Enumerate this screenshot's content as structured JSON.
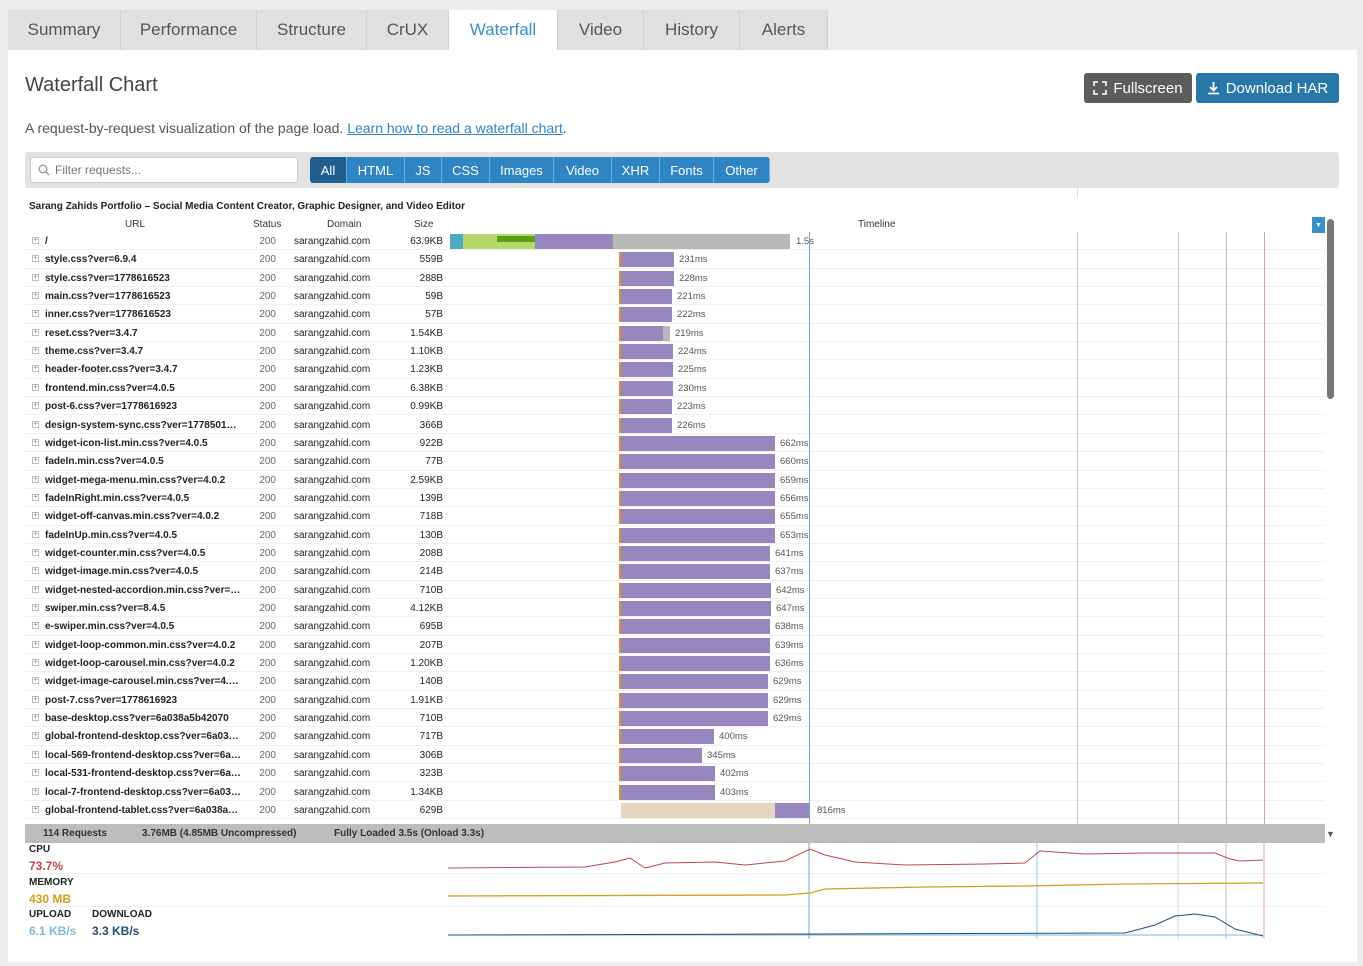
{
  "tabs": [
    {
      "label": "Summary",
      "w": 113
    },
    {
      "label": "Performance",
      "w": 136
    },
    {
      "label": "Structure",
      "w": 110
    },
    {
      "label": "CrUX",
      "w": 82
    },
    {
      "label": "Waterfall",
      "w": 109,
      "active": true
    },
    {
      "label": "Video",
      "w": 86
    },
    {
      "label": "History",
      "w": 96
    },
    {
      "label": "Alerts",
      "w": 88
    }
  ],
  "panel": {
    "title": "Waterfall Chart",
    "fullscreen": "Fullscreen",
    "download": "Download HAR",
    "desc": "A request-by-request visualization of the page load.",
    "desc_link": "Learn how to read a waterfall chart",
    "desc_end": "."
  },
  "filter": {
    "placeholder": "Filter requests...",
    "buttons": [
      "All",
      "HTML",
      "JS",
      "CSS",
      "Images",
      "Video",
      "XHR",
      "Fonts",
      "Other"
    ]
  },
  "waterfall": {
    "page_title": "Sarang Zahids Portfolio – Social Media Content Creator, Graphic Designer, and Video Editor",
    "headers": {
      "url": "URL",
      "status": "Status",
      "domain": "Domain",
      "size": "Size",
      "timeline": "Timeline"
    },
    "rows": [
      {
        "url": "/",
        "status": "200",
        "domain": "sarangzahid.com",
        "size": "63.9KB",
        "time": "1.5s"
      },
      {
        "url": "style.css?ver=6.9.4",
        "status": "200",
        "domain": "sarangzahid.com",
        "size": "559B",
        "time": "231ms"
      },
      {
        "url": "style.css?ver=1778616523",
        "status": "200",
        "domain": "sarangzahid.com",
        "size": "288B",
        "time": "228ms"
      },
      {
        "url": "main.css?ver=1778616523",
        "status": "200",
        "domain": "sarangzahid.com",
        "size": "59B",
        "time": "221ms"
      },
      {
        "url": "inner.css?ver=1778616523",
        "status": "200",
        "domain": "sarangzahid.com",
        "size": "57B",
        "time": "222ms"
      },
      {
        "url": "reset.css?ver=3.4.7",
        "status": "200",
        "domain": "sarangzahid.com",
        "size": "1.54KB",
        "time": "219ms"
      },
      {
        "url": "theme.css?ver=3.4.7",
        "status": "200",
        "domain": "sarangzahid.com",
        "size": "1.10KB",
        "time": "224ms"
      },
      {
        "url": "header-footer.css?ver=3.4.7",
        "status": "200",
        "domain": "sarangzahid.com",
        "size": "1.23KB",
        "time": "225ms"
      },
      {
        "url": "frontend.min.css?ver=4.0.5",
        "status": "200",
        "domain": "sarangzahid.com",
        "size": "6.38KB",
        "time": "230ms"
      },
      {
        "url": "post-6.css?ver=1778616923",
        "status": "200",
        "domain": "sarangzahid.com",
        "size": "0.99KB",
        "time": "223ms"
      },
      {
        "url": "design-system-sync.css?ver=1778501…",
        "status": "200",
        "domain": "sarangzahid.com",
        "size": "366B",
        "time": "226ms"
      },
      {
        "url": "widget-icon-list.min.css?ver=4.0.5",
        "status": "200",
        "domain": "sarangzahid.com",
        "size": "922B",
        "time": "662ms"
      },
      {
        "url": "fadeIn.min.css?ver=4.0.5",
        "status": "200",
        "domain": "sarangzahid.com",
        "size": "77B",
        "time": "660ms"
      },
      {
        "url": "widget-mega-menu.min.css?ver=4.0.2",
        "status": "200",
        "domain": "sarangzahid.com",
        "size": "2.59KB",
        "time": "659ms"
      },
      {
        "url": "fadeInRight.min.css?ver=4.0.5",
        "status": "200",
        "domain": "sarangzahid.com",
        "size": "139B",
        "time": "656ms"
      },
      {
        "url": "widget-off-canvas.min.css?ver=4.0.2",
        "status": "200",
        "domain": "sarangzahid.com",
        "size": "718B",
        "time": "655ms"
      },
      {
        "url": "fadeInUp.min.css?ver=4.0.5",
        "status": "200",
        "domain": "sarangzahid.com",
        "size": "130B",
        "time": "653ms"
      },
      {
        "url": "widget-counter.min.css?ver=4.0.5",
        "status": "200",
        "domain": "sarangzahid.com",
        "size": "208B",
        "time": "641ms"
      },
      {
        "url": "widget-image.min.css?ver=4.0.5",
        "status": "200",
        "domain": "sarangzahid.com",
        "size": "214B",
        "time": "637ms"
      },
      {
        "url": "widget-nested-accordion.min.css?ver=…",
        "status": "200",
        "domain": "sarangzahid.com",
        "size": "710B",
        "time": "642ms"
      },
      {
        "url": "swiper.min.css?ver=8.4.5",
        "status": "200",
        "domain": "sarangzahid.com",
        "size": "4.12KB",
        "time": "647ms"
      },
      {
        "url": "e-swiper.min.css?ver=4.0.5",
        "status": "200",
        "domain": "sarangzahid.com",
        "size": "695B",
        "time": "638ms"
      },
      {
        "url": "widget-loop-common.min.css?ver=4.0.2",
        "status": "200",
        "domain": "sarangzahid.com",
        "size": "207B",
        "time": "639ms"
      },
      {
        "url": "widget-loop-carousel.min.css?ver=4.0.2",
        "status": "200",
        "domain": "sarangzahid.com",
        "size": "1.20KB",
        "time": "636ms"
      },
      {
        "url": "widget-image-carousel.min.css?ver=4.…",
        "status": "200",
        "domain": "sarangzahid.com",
        "size": "140B",
        "time": "629ms"
      },
      {
        "url": "post-7.css?ver=1778616923",
        "status": "200",
        "domain": "sarangzahid.com",
        "size": "1.91KB",
        "time": "629ms"
      },
      {
        "url": "base-desktop.css?ver=6a038a5b42070",
        "status": "200",
        "domain": "sarangzahid.com",
        "size": "710B",
        "time": "629ms"
      },
      {
        "url": "global-frontend-desktop.css?ver=6a03…",
        "status": "200",
        "domain": "sarangzahid.com",
        "size": "717B",
        "time": "400ms"
      },
      {
        "url": "local-569-frontend-desktop.css?ver=6a…",
        "status": "200",
        "domain": "sarangzahid.com",
        "size": "306B",
        "time": "345ms"
      },
      {
        "url": "local-531-frontend-desktop.css?ver=6a…",
        "status": "200",
        "domain": "sarangzahid.com",
        "size": "323B",
        "time": "402ms"
      },
      {
        "url": "local-7-frontend-desktop.css?ver=6a03…",
        "status": "200",
        "domain": "sarangzahid.com",
        "size": "1.34KB",
        "time": "403ms"
      },
      {
        "url": "global-frontend-tablet.css?ver=6a038a…",
        "status": "200",
        "domain": "sarangzahid.com",
        "size": "629B",
        "time": "816ms"
      }
    ],
    "summary": {
      "requests": "114 Requests",
      "size": "3.76MB  (4.85MB Uncompressed)",
      "loaded": "Fully Loaded 3.5s  (Onload 3.3s)"
    }
  },
  "perf": {
    "cpu": {
      "label": "CPU",
      "value": "73.7%",
      "color": "#c0454a"
    },
    "memory": {
      "label": "MEMORY",
      "value": "430 MB",
      "color": "#d4a017"
    },
    "upload": {
      "label": "UPLOAD",
      "value": "6.1 KB/s",
      "color": "#7fb8d8"
    },
    "download": {
      "label": "DOWNLOAD",
      "value": "3.3 KB/s",
      "color": "#1f4e79"
    }
  },
  "colors": {
    "accent": "#2f84c4",
    "request_bar": "#9887bf",
    "wait": "#b8b8b8",
    "connect": "#b5d86a",
    "dns": "#4fa8c4"
  }
}
